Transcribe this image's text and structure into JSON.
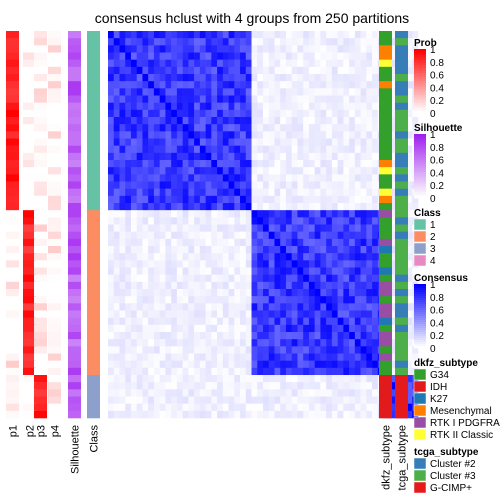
{
  "chart_data": {
    "type": "heatmap",
    "title": "consensus hclust with 4 groups from 250 partitions",
    "n_samples": 54,
    "left_columns": [
      {
        "name": "p1"
      },
      {
        "name": "p2"
      },
      {
        "name": "p3"
      },
      {
        "name": "p4"
      },
      {
        "name": "Silhouette"
      },
      {
        "name": "Class"
      }
    ],
    "right_columns": [
      {
        "name": "dkfz_subtype"
      },
      {
        "name": "tcga_subtype"
      }
    ],
    "groups": [
      {
        "class": "1",
        "count": 25
      },
      {
        "class": "2",
        "count": 23
      },
      {
        "class": "3",
        "count": 6
      }
    ],
    "colors": {
      "class": {
        "1": "#66C2A5",
        "2": "#FC8D62",
        "3": "#8DA0CB",
        "4": "#E78AC3"
      },
      "dkfz": {
        "G34": "#33A02C",
        "IDH": "#E31A1C",
        "K27": "#1F78B4",
        "Mesenchymal": "#FF7F00",
        "RTK I PDGFRA": "#984EA3",
        "RTK II Classic": "#FFFF33"
      },
      "tcga": {
        "Cluster #2": "#377EB8",
        "Cluster #3": "#4DAF4A",
        "G-CIMP+": "#E41A1C"
      },
      "prob_gradient": [
        "#FFFFFF",
        "#FF0000"
      ],
      "silhouette_gradient": [
        "#FFFFFF",
        "#A020F0"
      ],
      "consensus_gradient": [
        "#FFFFFF",
        "#0000FF"
      ]
    },
    "legends": [
      {
        "title": "Prob",
        "type": "gradient",
        "gradient": "prob",
        "ticks": [
          "1",
          "0.8",
          "0.6",
          "0.4",
          "0.2",
          "0"
        ]
      },
      {
        "title": "Silhouette",
        "type": "gradient",
        "gradient": "silhouette",
        "ticks": [
          "1",
          "0.8",
          "0.6",
          "0.4",
          "0.2",
          "0"
        ]
      },
      {
        "title": "Class",
        "type": "discrete",
        "items": [
          {
            "label": "1",
            "key": "1"
          },
          {
            "label": "2",
            "key": "2"
          },
          {
            "label": "3",
            "key": "3"
          },
          {
            "label": "4",
            "key": "4"
          }
        ],
        "palette": "class"
      },
      {
        "title": "Consensus",
        "type": "gradient",
        "gradient": "consensus",
        "ticks": [
          "1",
          "0.8",
          "0.6",
          "0.4",
          "0.2",
          "0"
        ]
      },
      {
        "title": "dkfz_subtype",
        "type": "discrete",
        "items": [
          {
            "label": "G34",
            "key": "G34"
          },
          {
            "label": "IDH",
            "key": "IDH"
          },
          {
            "label": "K27",
            "key": "K27"
          },
          {
            "label": "Mesenchymal",
            "key": "Mesenchymal"
          },
          {
            "label": "RTK I PDGFRA",
            "key": "RTK I PDGFRA"
          },
          {
            "label": "RTK II Classic",
            "key": "RTK II Classic"
          }
        ],
        "palette": "dkfz"
      },
      {
        "title": "tcga_subtype",
        "type": "discrete",
        "items": [
          {
            "label": "Cluster #2",
            "key": "Cluster #2"
          },
          {
            "label": "Cluster #3",
            "key": "Cluster #3"
          },
          {
            "label": "G-CIMP+",
            "key": "G-CIMP+"
          }
        ],
        "palette": "tcga"
      }
    ]
  }
}
